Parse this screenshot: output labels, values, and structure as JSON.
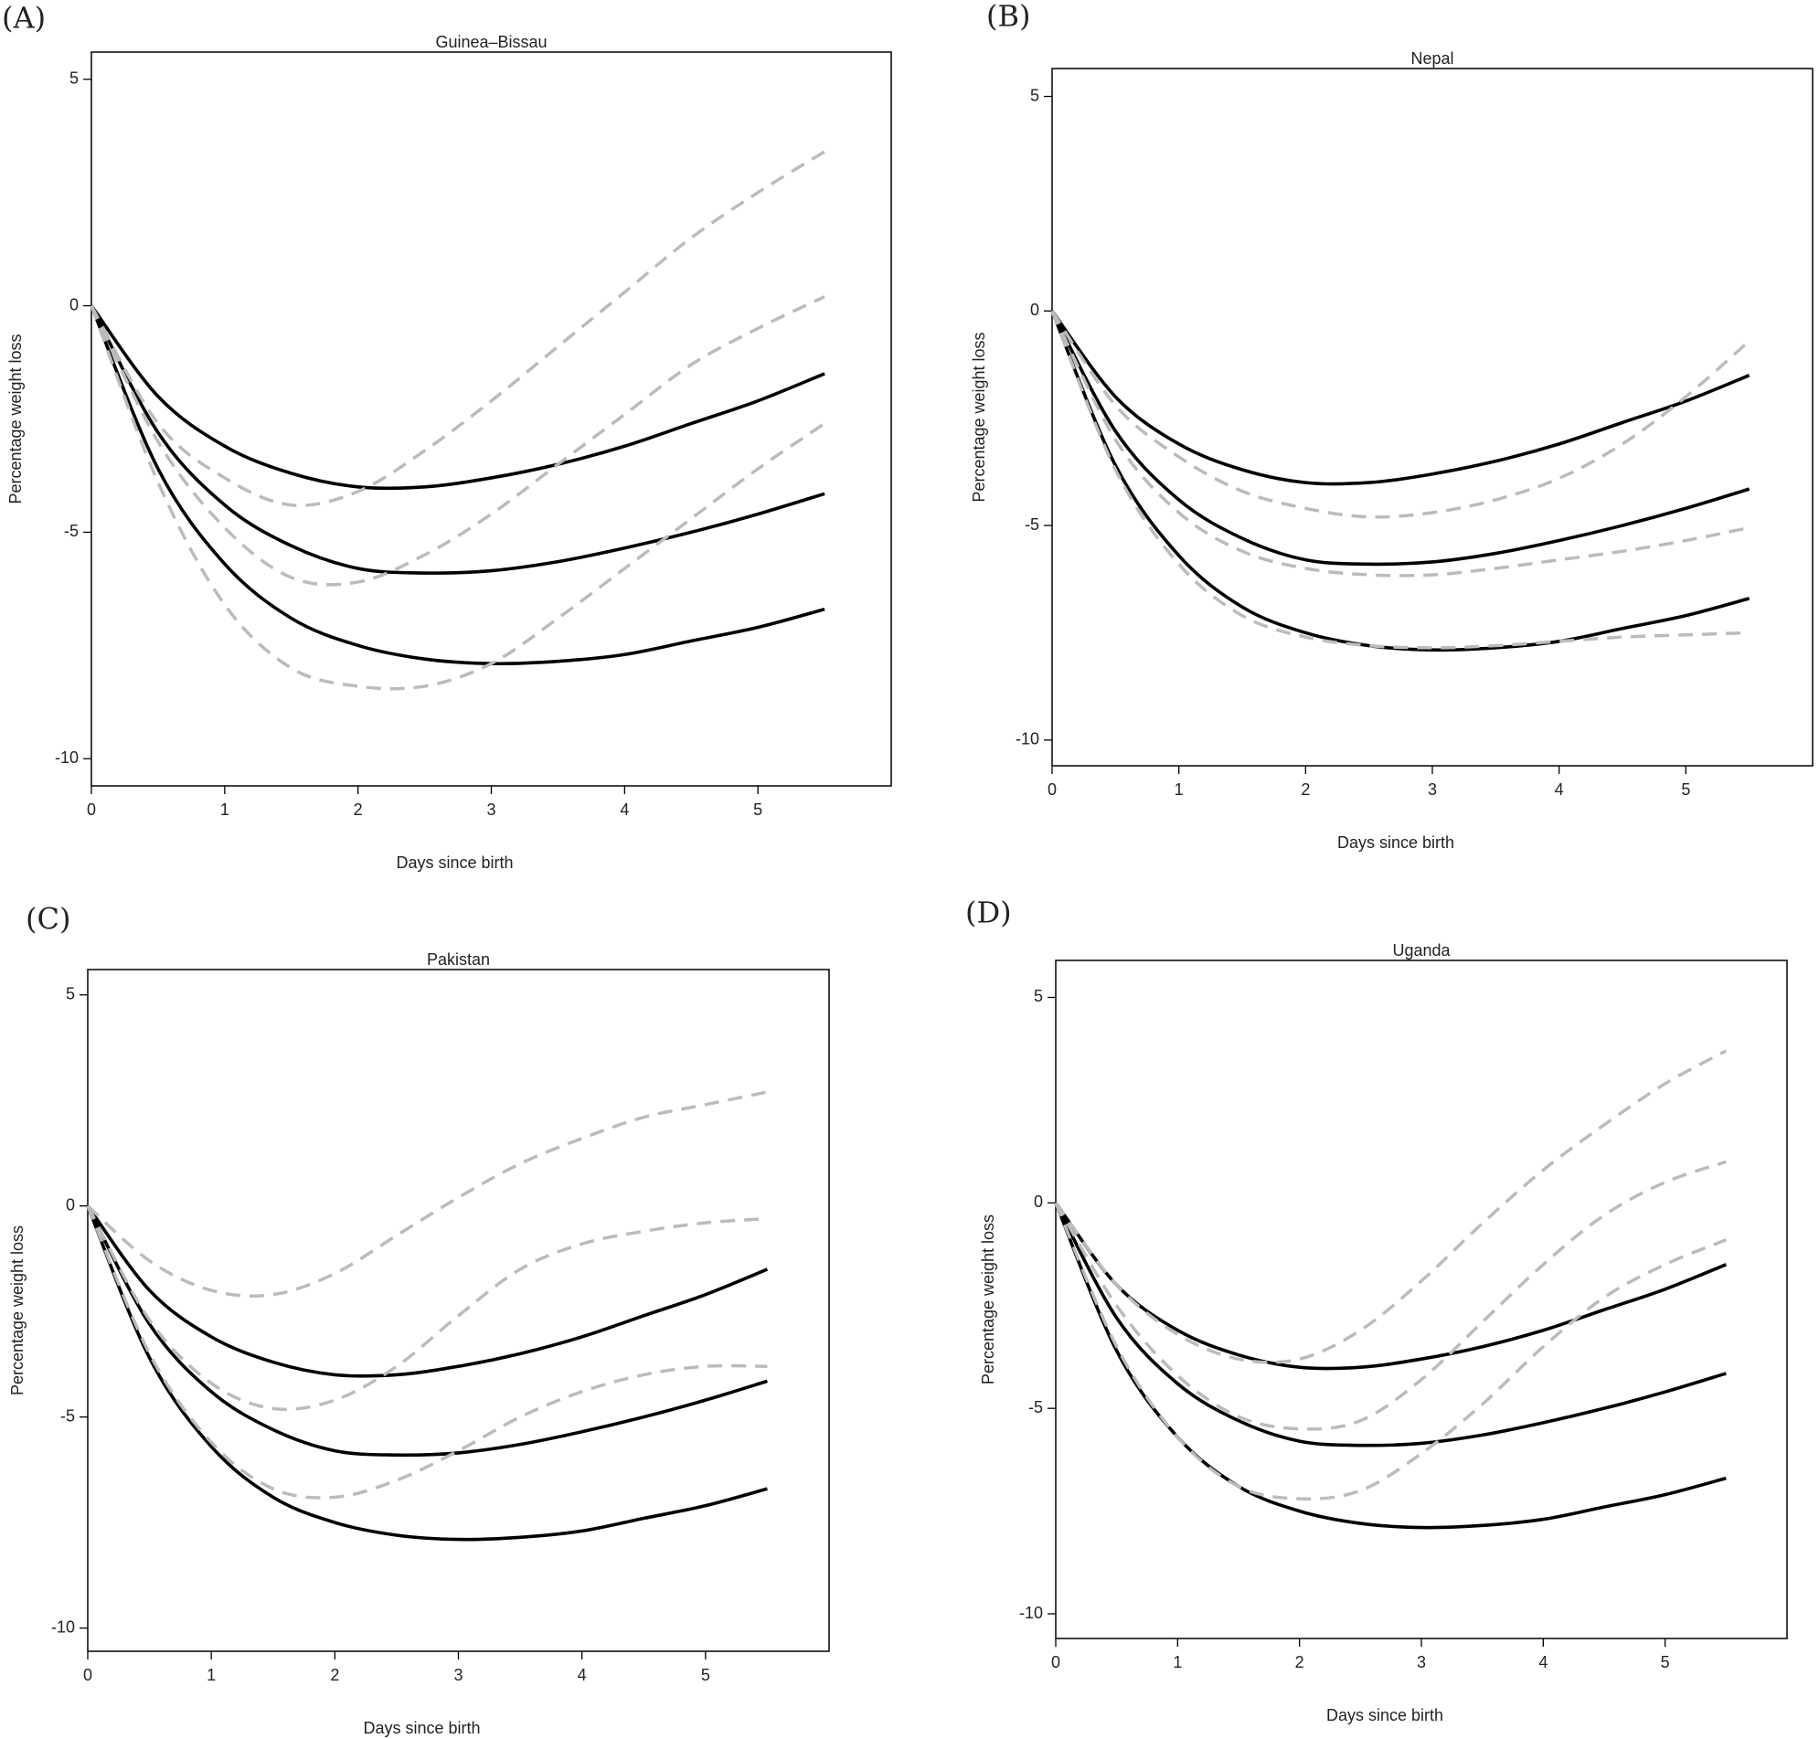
{
  "chart_data": [
    {
      "type": "line",
      "panel_label": "(A)",
      "title": "Guinea–Bissau",
      "x_label": "Days since birth",
      "y_label": "Percentage weight loss",
      "xlim": [
        0,
        6
      ],
      "ylim": [
        -10.6,
        5.6
      ],
      "xticks": [
        0,
        1,
        2,
        3,
        4,
        5
      ],
      "yticks": [
        -10,
        -5,
        0,
        5
      ],
      "x": [
        0,
        0.5,
        1,
        1.5,
        2,
        2.5,
        3,
        3.5,
        4,
        4.5,
        5,
        5.5
      ],
      "series": [
        {
          "color": "#000000",
          "dashed": false,
          "values": [
            0,
            -2.0,
            -3.1,
            -3.7,
            -4.0,
            -4.0,
            -3.8,
            -3.5,
            -3.1,
            -2.6,
            -2.1,
            -1.5
          ]
        },
        {
          "color": "#000000",
          "dashed": false,
          "values": [
            0,
            -2.8,
            -4.4,
            -5.3,
            -5.8,
            -5.9,
            -5.85,
            -5.65,
            -5.35,
            -5.0,
            -4.6,
            -4.15
          ]
        },
        {
          "color": "#000000",
          "dashed": false,
          "values": [
            0,
            -3.6,
            -5.7,
            -6.9,
            -7.5,
            -7.8,
            -7.9,
            -7.85,
            -7.7,
            -7.4,
            -7.1,
            -6.7
          ]
        },
        {
          "color": "#bbbbbb",
          "dashed": true,
          "values": [
            0,
            -2.6,
            -3.8,
            -4.4,
            -4.1,
            -3.2,
            -2.1,
            -0.9,
            0.3,
            1.5,
            2.5,
            3.4
          ]
        },
        {
          "color": "#bbbbbb",
          "dashed": true,
          "values": [
            0,
            -3.0,
            -4.9,
            -6.0,
            -6.1,
            -5.5,
            -4.6,
            -3.5,
            -2.4,
            -1.3,
            -0.5,
            0.2
          ]
        },
        {
          "color": "#bbbbbb",
          "dashed": true,
          "values": [
            0,
            -3.9,
            -6.6,
            -8.0,
            -8.4,
            -8.4,
            -7.9,
            -6.9,
            -5.8,
            -4.7,
            -3.6,
            -2.6
          ]
        }
      ]
    },
    {
      "type": "line",
      "panel_label": "(B)",
      "title": "Nepal",
      "x_label": "Days since birth",
      "y_label": "Percentage weight loss",
      "xlim": [
        0,
        6
      ],
      "ylim": [
        -10.6,
        5.65
      ],
      "xticks": [
        0,
        1,
        2,
        3,
        4,
        5
      ],
      "yticks": [
        -10,
        -5,
        0,
        5
      ],
      "x": [
        0,
        0.5,
        1,
        1.5,
        2,
        2.5,
        3,
        3.5,
        4,
        4.5,
        5,
        5.5
      ],
      "series": [
        {
          "color": "#000000",
          "dashed": false,
          "values": [
            0,
            -2.0,
            -3.1,
            -3.7,
            -4.0,
            -4.0,
            -3.8,
            -3.5,
            -3.1,
            -2.6,
            -2.1,
            -1.5
          ]
        },
        {
          "color": "#000000",
          "dashed": false,
          "values": [
            0,
            -2.8,
            -4.4,
            -5.3,
            -5.8,
            -5.9,
            -5.85,
            -5.65,
            -5.35,
            -5.0,
            -4.6,
            -4.15
          ]
        },
        {
          "color": "#000000",
          "dashed": false,
          "values": [
            0,
            -3.6,
            -5.7,
            -6.9,
            -7.5,
            -7.8,
            -7.9,
            -7.85,
            -7.7,
            -7.4,
            -7.1,
            -6.7
          ]
        },
        {
          "color": "#bbbbbb",
          "dashed": true,
          "values": [
            0,
            -2.2,
            -3.4,
            -4.2,
            -4.6,
            -4.8,
            -4.7,
            -4.4,
            -3.9,
            -3.1,
            -2.0,
            -0.7
          ]
        },
        {
          "color": "#bbbbbb",
          "dashed": true,
          "values": [
            0,
            -3.0,
            -4.7,
            -5.6,
            -6.0,
            -6.15,
            -6.15,
            -6.0,
            -5.8,
            -5.6,
            -5.35,
            -5.05
          ]
        },
        {
          "color": "#bbbbbb",
          "dashed": true,
          "values": [
            0,
            -3.7,
            -5.9,
            -7.1,
            -7.6,
            -7.8,
            -7.85,
            -7.8,
            -7.7,
            -7.6,
            -7.55,
            -7.5
          ]
        }
      ]
    },
    {
      "type": "line",
      "panel_label": "(C)",
      "title": "Pakistan",
      "x_label": "Days since birth",
      "y_label": "Percentage weight loss",
      "xlim": [
        0,
        6
      ],
      "ylim": [
        -10.55,
        5.6
      ],
      "xticks": [
        0,
        1,
        2,
        3,
        4,
        5
      ],
      "yticks": [
        -10,
        -5,
        0,
        5
      ],
      "x": [
        0,
        0.5,
        1,
        1.5,
        2,
        2.5,
        3,
        3.5,
        4,
        4.5,
        5,
        5.5
      ],
      "series": [
        {
          "color": "#000000",
          "dashed": false,
          "values": [
            0,
            -2.0,
            -3.1,
            -3.7,
            -4.0,
            -4.0,
            -3.8,
            -3.5,
            -3.1,
            -2.6,
            -2.1,
            -1.5
          ]
        },
        {
          "color": "#000000",
          "dashed": false,
          "values": [
            0,
            -2.8,
            -4.4,
            -5.3,
            -5.8,
            -5.9,
            -5.85,
            -5.65,
            -5.35,
            -5.0,
            -4.6,
            -4.15
          ]
        },
        {
          "color": "#000000",
          "dashed": false,
          "values": [
            0,
            -3.6,
            -5.7,
            -6.9,
            -7.5,
            -7.8,
            -7.9,
            -7.85,
            -7.7,
            -7.4,
            -7.1,
            -6.7
          ]
        },
        {
          "color": "#bbbbbb",
          "dashed": true,
          "values": [
            0,
            -1.3,
            -2.0,
            -2.1,
            -1.6,
            -0.7,
            0.2,
            1.0,
            1.6,
            2.1,
            2.4,
            2.7
          ]
        },
        {
          "color": "#bbbbbb",
          "dashed": true,
          "values": [
            0,
            -2.7,
            -4.2,
            -4.8,
            -4.6,
            -3.8,
            -2.6,
            -1.5,
            -0.9,
            -0.6,
            -0.4,
            -0.3
          ]
        },
        {
          "color": "#bbbbbb",
          "dashed": true,
          "values": [
            0,
            -3.5,
            -5.6,
            -6.7,
            -6.9,
            -6.5,
            -5.8,
            -5.0,
            -4.4,
            -4.0,
            -3.8,
            -3.8
          ]
        }
      ]
    },
    {
      "type": "line",
      "panel_label": "(D)",
      "title": "Uganda",
      "x_label": "Days since birth",
      "y_label": "Percentage weight loss",
      "xlim": [
        0,
        6
      ],
      "ylim": [
        -10.6,
        5.9
      ],
      "xticks": [
        0,
        1,
        2,
        3,
        4,
        5
      ],
      "yticks": [
        -10,
        -5,
        0,
        5
      ],
      "x": [
        0,
        0.5,
        1,
        1.5,
        2,
        2.5,
        3,
        3.5,
        4,
        4.5,
        5,
        5.5
      ],
      "series": [
        {
          "color": "#000000",
          "dashed": false,
          "values": [
            0,
            -2.0,
            -3.1,
            -3.7,
            -4.0,
            -4.0,
            -3.8,
            -3.5,
            -3.1,
            -2.6,
            -2.1,
            -1.5
          ]
        },
        {
          "color": "#000000",
          "dashed": false,
          "values": [
            0,
            -2.8,
            -4.4,
            -5.3,
            -5.8,
            -5.9,
            -5.85,
            -5.65,
            -5.35,
            -5.0,
            -4.6,
            -4.15
          ]
        },
        {
          "color": "#000000",
          "dashed": false,
          "values": [
            0,
            -3.6,
            -5.7,
            -6.9,
            -7.5,
            -7.8,
            -7.9,
            -7.85,
            -7.7,
            -7.4,
            -7.1,
            -6.7
          ]
        },
        {
          "color": "#bbbbbb",
          "dashed": true,
          "values": [
            0,
            -2.0,
            -3.2,
            -3.8,
            -3.8,
            -3.1,
            -1.9,
            -0.5,
            0.8,
            1.9,
            2.9,
            3.7
          ]
        },
        {
          "color": "#bbbbbb",
          "dashed": true,
          "values": [
            0,
            -2.5,
            -4.2,
            -5.2,
            -5.5,
            -5.3,
            -4.3,
            -2.9,
            -1.5,
            -0.3,
            0.5,
            1.0
          ]
        },
        {
          "color": "#bbbbbb",
          "dashed": true,
          "values": [
            0,
            -3.5,
            -5.7,
            -6.9,
            -7.2,
            -7.0,
            -6.1,
            -4.9,
            -3.5,
            -2.3,
            -1.5,
            -0.9
          ]
        }
      ]
    }
  ]
}
